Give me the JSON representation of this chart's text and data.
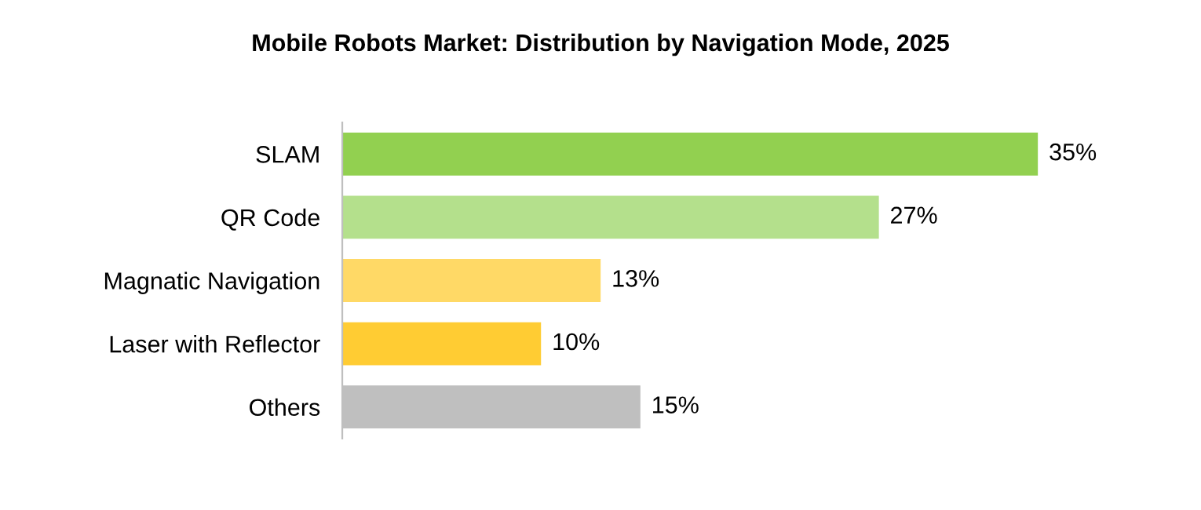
{
  "chart_data": {
    "type": "bar",
    "orientation": "horizontal",
    "title": "Mobile Robots Market: Distribution by Navigation Mode, 2025",
    "categories": [
      "SLAM",
      "QR Code",
      "Magnatic Navigation",
      "Laser with Reflector",
      "Others"
    ],
    "values": [
      35,
      27,
      13,
      10,
      15
    ],
    "colors": [
      "#92d050",
      "#b4e08c",
      "#ffd966",
      "#ffcc33",
      "#bfbfbf"
    ],
    "value_labels": [
      "35%",
      "27%",
      "13%",
      "10%",
      "15%"
    ],
    "tick_labels": "y",
    "grid": false,
    "legend": false
  }
}
